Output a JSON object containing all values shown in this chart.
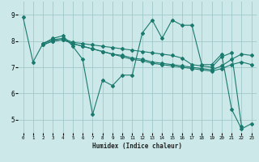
{
  "xlabel": "Humidex (Indice chaleur)",
  "bg_color": "#cce8e8",
  "grid_color": "#a0c8c8",
  "line_color": "#1a7a6e",
  "xlim": [
    -0.5,
    23.5
  ],
  "ylim": [
    4.5,
    9.5
  ],
  "xticks": [
    0,
    1,
    2,
    3,
    4,
    5,
    6,
    7,
    8,
    9,
    10,
    11,
    12,
    13,
    14,
    15,
    16,
    17,
    18,
    19,
    20,
    21,
    22,
    23
  ],
  "yticks": [
    5,
    6,
    7,
    8,
    9
  ],
  "lines": [
    {
      "x": [
        0,
        1,
        2,
        3,
        4,
        5,
        6,
        7,
        8,
        9,
        10,
        11,
        12,
        13,
        14,
        15,
        16,
        17,
        18,
        19,
        20,
        21,
        22,
        23
      ],
      "y": [
        8.9,
        7.2,
        7.9,
        8.1,
        8.2,
        7.8,
        7.3,
        5.2,
        6.5,
        6.3,
        6.7,
        6.7,
        8.3,
        8.8,
        8.1,
        8.8,
        8.6,
        8.6,
        7.1,
        7.1,
        7.5,
        5.4,
        4.65,
        4.85
      ]
    },
    {
      "x": [
        2,
        3,
        4,
        5,
        6,
        7,
        8,
        9,
        10,
        11,
        12,
        13,
        14,
        15,
        16,
        17,
        18,
        19,
        20,
        21,
        22
      ],
      "y": [
        7.9,
        8.05,
        8.1,
        7.95,
        7.9,
        7.85,
        7.8,
        7.75,
        7.7,
        7.65,
        7.6,
        7.55,
        7.5,
        7.45,
        7.35,
        7.1,
        7.05,
        7.0,
        7.4,
        7.55,
        4.75
      ]
    },
    {
      "x": [
        2,
        3,
        4,
        5,
        6,
        7,
        8,
        9,
        10,
        11,
        12,
        13,
        14,
        15,
        16,
        17,
        18,
        19,
        20,
        21,
        22,
        23
      ],
      "y": [
        7.85,
        8.0,
        8.05,
        7.9,
        7.8,
        7.7,
        7.6,
        7.5,
        7.45,
        7.35,
        7.3,
        7.2,
        7.15,
        7.1,
        7.05,
        7.0,
        6.95,
        6.9,
        7.05,
        7.3,
        7.5,
        7.45
      ]
    },
    {
      "x": [
        2,
        3,
        4,
        5,
        6,
        7,
        8,
        9,
        10,
        11,
        12,
        13,
        14,
        15,
        16,
        17,
        18,
        19,
        20,
        21,
        22,
        23
      ],
      "y": [
        7.85,
        8.0,
        8.05,
        7.9,
        7.8,
        7.7,
        7.6,
        7.5,
        7.4,
        7.3,
        7.25,
        7.15,
        7.1,
        7.05,
        7.0,
        6.95,
        6.9,
        6.85,
        6.95,
        7.1,
        7.2,
        7.1
      ]
    }
  ]
}
